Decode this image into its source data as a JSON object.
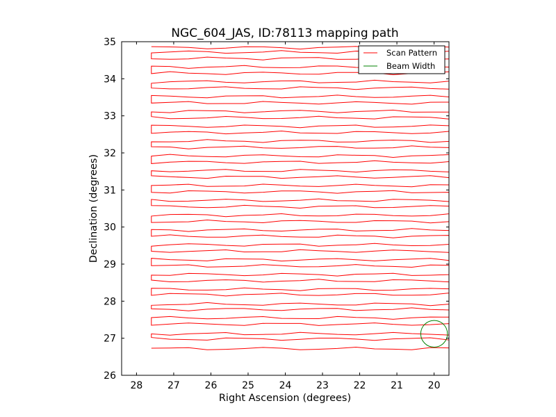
{
  "chart_data": {
    "type": "line",
    "title": "NGC_604_JAS, ID:78113 mapping path",
    "xlabel": "Right Ascension (degrees)",
    "ylabel": "Declination (degrees)",
    "xlim": [
      28.4,
      19.6
    ],
    "ylim": [
      26,
      35
    ],
    "x_ticks": [
      "28",
      "27",
      "26",
      "25",
      "24",
      "23",
      "22",
      "21",
      "20"
    ],
    "y_ticks": [
      "26",
      "27",
      "28",
      "29",
      "30",
      "31",
      "32",
      "33",
      "34",
      "35"
    ],
    "legend": {
      "position": "top-right",
      "entries": [
        "Scan Pattern",
        "Beam Width"
      ]
    },
    "grid": false,
    "series": [
      {
        "name": "Scan Pattern",
        "color": "#ff0000",
        "style": "boustrophedon raster scan",
        "x_range": [
          27.6,
          19.6
        ],
        "row_declinations": [
          26.72,
          26.98,
          27.12,
          27.38,
          27.55,
          27.78,
          27.92,
          28.18,
          28.32,
          28.55,
          28.72,
          28.95,
          29.12,
          29.35,
          29.52,
          29.75,
          29.92,
          30.15,
          30.32,
          30.55,
          30.72,
          30.95,
          31.12,
          31.35,
          31.52,
          31.75,
          31.92,
          32.15,
          32.32,
          32.55,
          32.72,
          32.95,
          33.12,
          33.35,
          33.52,
          33.75,
          33.92,
          34.15,
          34.32,
          34.55,
          34.72,
          34.84
        ]
      },
      {
        "name": "Beam Width",
        "color": "#008000",
        "shape": "circle",
        "center": {
          "ra": 20.0,
          "dec": 27.12
        },
        "radius_deg": 0.36
      }
    ]
  }
}
